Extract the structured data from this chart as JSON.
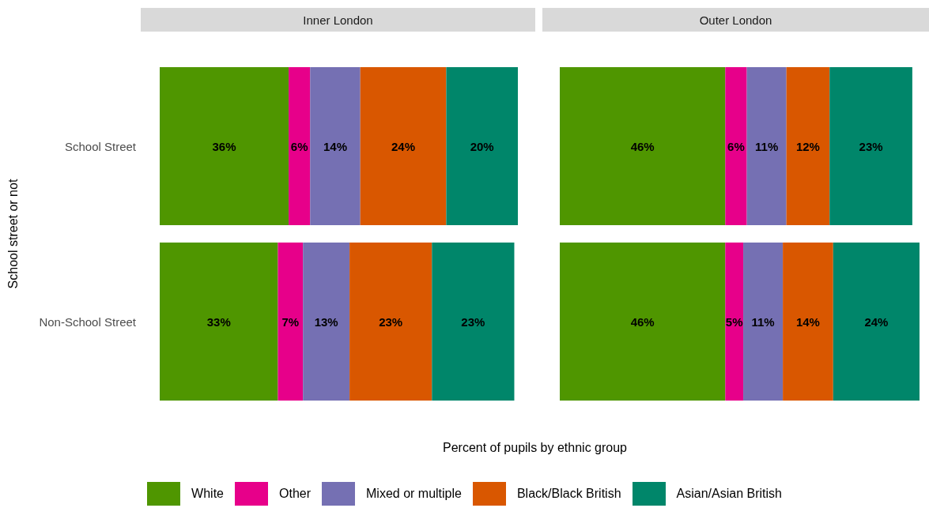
{
  "chart_data": [
    {
      "type": "bar",
      "title": "Inner London",
      "orientation": "horizontal",
      "stacked": true,
      "ylabel": "School street or not",
      "xlabel": "Percent of pupils by ethnic group",
      "categories": [
        "School Street",
        "Non-School Street"
      ],
      "xlim": [
        0,
        100
      ],
      "tick_labels": "y",
      "grid": false,
      "legend": "bottom",
      "series": [
        {
          "name": "White",
          "color": "#4f9600",
          "values": [
            36,
            33
          ],
          "value_labels": [
            "36%",
            "33%"
          ]
        },
        {
          "name": "Other",
          "color": "#e7008a",
          "values": [
            6,
            7
          ],
          "value_labels": [
            "6%",
            "7%"
          ]
        },
        {
          "name": "Mixed or multiple",
          "color": "#7570b3",
          "values": [
            14,
            13
          ],
          "value_labels": [
            "14%",
            "13%"
          ]
        },
        {
          "name": "Black/Black British",
          "color": "#d95700",
          "values": [
            24,
            23
          ],
          "value_labels": [
            "24%",
            "23%"
          ]
        },
        {
          "name": "Asian/Asian British",
          "color": "#00866a",
          "values": [
            20,
            23
          ],
          "value_labels": [
            "20%",
            "23%"
          ]
        }
      ]
    },
    {
      "type": "bar",
      "title": "Outer London",
      "orientation": "horizontal",
      "stacked": true,
      "categories": [
        "School Street",
        "Non-School Street"
      ],
      "xlim": [
        0,
        100
      ],
      "tick_labels": false,
      "grid": false,
      "legend": false,
      "series": [
        {
          "name": "White",
          "color": "#4f9600",
          "values": [
            46,
            46
          ],
          "value_labels": [
            "46%",
            "46%"
          ]
        },
        {
          "name": "Other",
          "color": "#e7008a",
          "values": [
            6,
            5
          ],
          "value_labels": [
            "6%",
            "5%"
          ]
        },
        {
          "name": "Mixed or multiple",
          "color": "#7570b3",
          "values": [
            11,
            11
          ],
          "value_labels": [
            "11%",
            "11%"
          ]
        },
        {
          "name": "Black/Black British",
          "color": "#d95700",
          "values": [
            12,
            14
          ],
          "value_labels": [
            "12%",
            "14%"
          ]
        },
        {
          "name": "Asian/Asian British",
          "color": "#00866a",
          "values": [
            23,
            24
          ],
          "value_labels": [
            "23%",
            "24%"
          ]
        }
      ]
    }
  ]
}
